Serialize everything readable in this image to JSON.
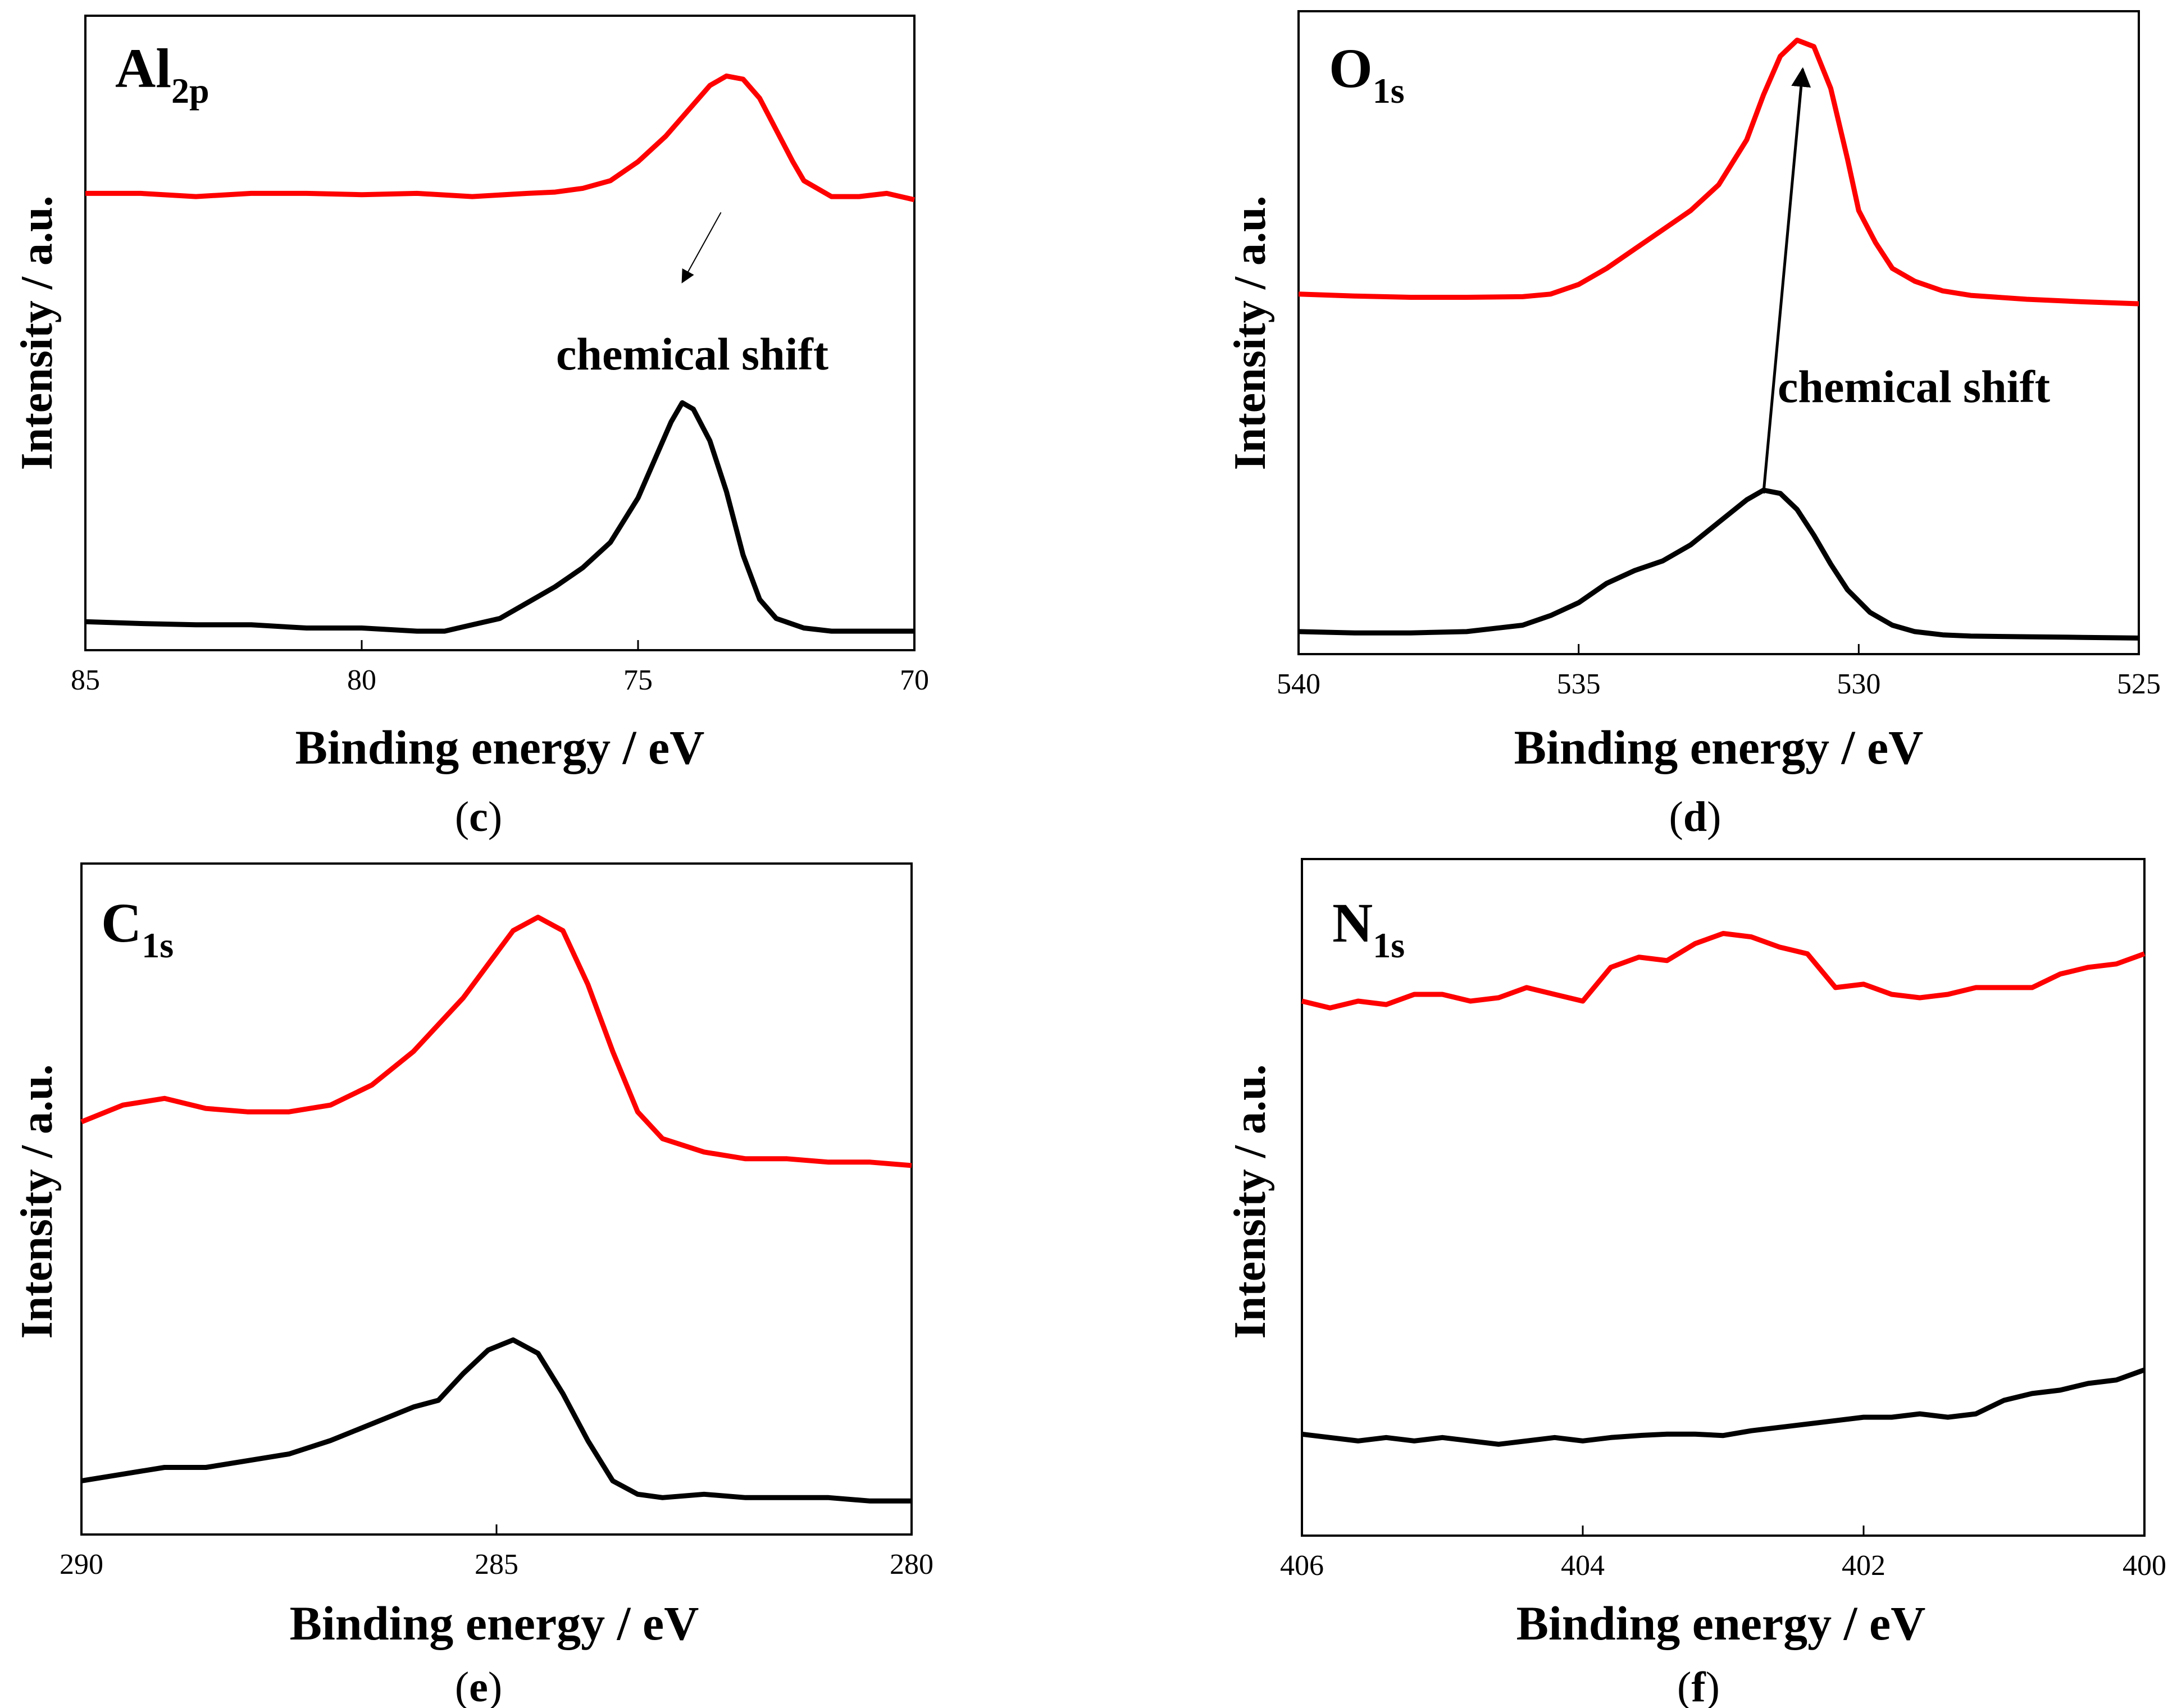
{
  "colors": {
    "red_series": "#ff0000",
    "black_series": "#000000"
  },
  "chart_data": [
    {
      "type": "line",
      "element": "Al",
      "element_sub": "2p",
      "caption_open": "(",
      "caption_letter": "c",
      "caption_close": ")",
      "xlabel": "Binding energy / eV",
      "ylabel": "Intensity / a.u.",
      "xlim": [
        85,
        70
      ],
      "ylim": [
        0,
        1
      ],
      "xticks": [
        85,
        80,
        75,
        70
      ],
      "annotation": "chemical shift",
      "arrow": {
        "from": [
          73.5,
          0.69
        ],
        "to": [
          74.2,
          0.58
        ]
      },
      "series": [
        {
          "name": "red",
          "color": "#ff0000",
          "x": [
            85,
            84,
            83,
            82,
            81,
            80,
            79,
            78,
            77,
            76.5,
            76,
            75.5,
            75,
            74.5,
            74,
            73.7,
            73.4,
            73.1,
            72.8,
            72.5,
            72.2,
            72,
            71.5,
            71,
            70.5,
            70
          ],
          "y": [
            0.72,
            0.72,
            0.715,
            0.72,
            0.72,
            0.718,
            0.72,
            0.715,
            0.72,
            0.722,
            0.728,
            0.74,
            0.77,
            0.81,
            0.86,
            0.89,
            0.905,
            0.9,
            0.87,
            0.82,
            0.77,
            0.74,
            0.715,
            0.715,
            0.72,
            0.71
          ]
        },
        {
          "name": "black",
          "color": "#000000",
          "x": [
            85,
            84,
            83,
            82,
            81,
            80,
            79,
            78.5,
            78,
            77.5,
            77,
            76.5,
            76,
            75.5,
            75,
            74.7,
            74.4,
            74.2,
            74,
            73.7,
            73.4,
            73.1,
            72.8,
            72.5,
            72,
            71.5,
            71,
            70
          ],
          "y": [
            0.045,
            0.042,
            0.04,
            0.04,
            0.035,
            0.035,
            0.03,
            0.03,
            0.04,
            0.05,
            0.075,
            0.1,
            0.13,
            0.17,
            0.24,
            0.3,
            0.36,
            0.39,
            0.38,
            0.33,
            0.25,
            0.15,
            0.08,
            0.05,
            0.035,
            0.03,
            0.03,
            0.03
          ]
        }
      ]
    },
    {
      "type": "line",
      "element": "O",
      "element_sub": "1s",
      "caption_open": "(",
      "caption_letter": "d",
      "caption_close": ")",
      "xlabel": "Binding energy / eV",
      "ylabel": "Intensity / a.u.",
      "xlim": [
        540,
        525
      ],
      "ylim": [
        0,
        1
      ],
      "xticks": [
        540,
        535,
        530,
        525
      ],
      "annotation": "chemical shift",
      "arrow": {
        "from": [
          531.7,
          0.25
        ],
        "to": [
          531.0,
          0.91
        ]
      },
      "series": [
        {
          "name": "red",
          "color": "#ff0000",
          "x": [
            540,
            539,
            538,
            537,
            536,
            535.5,
            535,
            534.5,
            534,
            533.5,
            533,
            532.5,
            532,
            531.7,
            531.4,
            531.1,
            530.8,
            530.5,
            530.2,
            530,
            529.7,
            529.4,
            529,
            528.5,
            528,
            527,
            526,
            525
          ],
          "y": [
            0.56,
            0.557,
            0.555,
            0.555,
            0.556,
            0.56,
            0.575,
            0.6,
            0.63,
            0.66,
            0.69,
            0.73,
            0.8,
            0.87,
            0.93,
            0.955,
            0.945,
            0.88,
            0.77,
            0.69,
            0.64,
            0.6,
            0.58,
            0.565,
            0.558,
            0.552,
            0.548,
            0.545
          ]
        },
        {
          "name": "black",
          "color": "#000000",
          "x": [
            540,
            539,
            538,
            537,
            536,
            535.5,
            535,
            534.5,
            534,
            533.5,
            533,
            532.5,
            532,
            531.7,
            531.4,
            531.1,
            530.8,
            530.5,
            530.2,
            529.8,
            529.4,
            529,
            528.5,
            528,
            527,
            526,
            525
          ],
          "y": [
            0.035,
            0.033,
            0.033,
            0.035,
            0.045,
            0.06,
            0.08,
            0.11,
            0.13,
            0.145,
            0.17,
            0.205,
            0.24,
            0.255,
            0.25,
            0.225,
            0.185,
            0.14,
            0.1,
            0.065,
            0.045,
            0.035,
            0.03,
            0.028,
            0.027,
            0.026,
            0.025
          ]
        }
      ]
    },
    {
      "type": "line",
      "element": "C",
      "element_sub": "1s",
      "caption_open": "(",
      "caption_letter": "e",
      "caption_close": ")",
      "xlabel": "Binding energy / eV",
      "ylabel": "Intensity / a.u.",
      "xlim": [
        290,
        280
      ],
      "ylim": [
        0,
        1
      ],
      "xticks": [
        290,
        285,
        280
      ],
      "series": [
        {
          "name": "red",
          "color": "#ff0000",
          "x": [
            290,
            289.5,
            289,
            288.5,
            288,
            287.5,
            287,
            286.5,
            286,
            285.7,
            285.4,
            285.1,
            284.8,
            284.5,
            284.2,
            283.9,
            283.6,
            283.3,
            283,
            282.5,
            282,
            281.5,
            281,
            280.5,
            280
          ],
          "y": [
            0.615,
            0.64,
            0.65,
            0.635,
            0.63,
            0.63,
            0.64,
            0.67,
            0.72,
            0.76,
            0.8,
            0.85,
            0.9,
            0.92,
            0.9,
            0.82,
            0.72,
            0.63,
            0.59,
            0.57,
            0.56,
            0.56,
            0.555,
            0.555,
            0.55
          ]
        },
        {
          "name": "black",
          "color": "#000000",
          "x": [
            290,
            289.5,
            289,
            288.5,
            288,
            287.5,
            287,
            286.5,
            286,
            285.7,
            285.4,
            285.1,
            284.8,
            284.5,
            284.2,
            283.9,
            283.6,
            283.3,
            283,
            282.5,
            282,
            281.5,
            281,
            280.5,
            280
          ],
          "y": [
            0.08,
            0.09,
            0.1,
            0.1,
            0.11,
            0.12,
            0.14,
            0.165,
            0.19,
            0.2,
            0.24,
            0.275,
            0.29,
            0.27,
            0.21,
            0.14,
            0.08,
            0.06,
            0.055,
            0.06,
            0.055,
            0.055,
            0.055,
            0.05,
            0.05
          ]
        }
      ]
    },
    {
      "type": "line",
      "element": "N",
      "element_sub": "1s",
      "caption_open": "(",
      "caption_letter": "f",
      "caption_close": ")",
      "xlabel": "Binding energy / eV",
      "ylabel": "Intensity / a.u.",
      "xlim": [
        406,
        400
      ],
      "ylim": [
        0,
        1
      ],
      "xticks": [
        406,
        404,
        402,
        400
      ],
      "series": [
        {
          "name": "red",
          "color": "#ff0000",
          "x": [
            406,
            405.8,
            405.6,
            405.4,
            405.2,
            405,
            404.8,
            404.6,
            404.4,
            404.2,
            404,
            403.8,
            403.6,
            403.4,
            403.2,
            403,
            402.8,
            402.6,
            402.4,
            402.2,
            402,
            401.8,
            401.6,
            401.4,
            401.2,
            401,
            400.8,
            400.6,
            400.4,
            400.2,
            400
          ],
          "y": [
            0.79,
            0.78,
            0.79,
            0.785,
            0.8,
            0.8,
            0.79,
            0.795,
            0.81,
            0.8,
            0.79,
            0.84,
            0.855,
            0.85,
            0.875,
            0.89,
            0.885,
            0.87,
            0.86,
            0.81,
            0.815,
            0.8,
            0.795,
            0.8,
            0.81,
            0.81,
            0.81,
            0.83,
            0.84,
            0.845,
            0.86
          ]
        },
        {
          "name": "black",
          "color": "#000000",
          "x": [
            406,
            405.8,
            405.6,
            405.4,
            405.2,
            405,
            404.8,
            404.6,
            404.4,
            404.2,
            404,
            403.8,
            403.6,
            403.4,
            403.2,
            403,
            402.8,
            402.6,
            402.4,
            402.2,
            402,
            401.8,
            401.6,
            401.4,
            401.2,
            401,
            400.8,
            400.6,
            400.4,
            400.2,
            400
          ],
          "y": [
            0.15,
            0.145,
            0.14,
            0.145,
            0.14,
            0.145,
            0.14,
            0.135,
            0.14,
            0.145,
            0.14,
            0.145,
            0.148,
            0.15,
            0.15,
            0.148,
            0.155,
            0.16,
            0.165,
            0.17,
            0.175,
            0.175,
            0.18,
            0.175,
            0.18,
            0.2,
            0.21,
            0.215,
            0.225,
            0.23,
            0.245
          ]
        }
      ]
    }
  ]
}
